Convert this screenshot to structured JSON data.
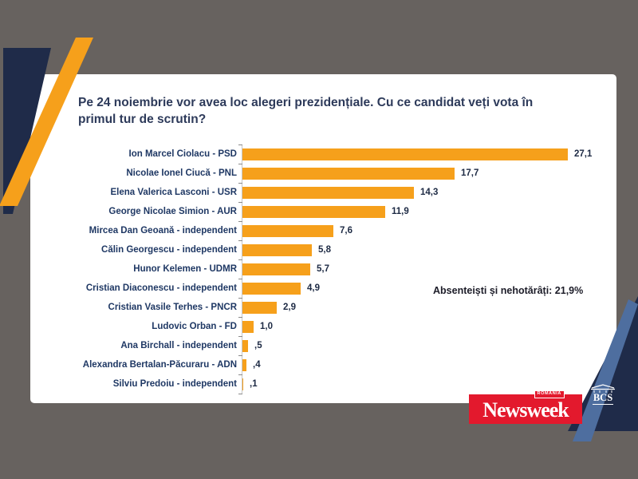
{
  "colors": {
    "background": "#67625f",
    "navy": "#1f2b49",
    "orange": "#f6a01b",
    "steel_blue": "#4e6e9f",
    "newsweek_red": "#e3192d",
    "title_text": "#2d3a5a",
    "label_text": "#1f3864",
    "bar_color": "#f6a01b"
  },
  "card": {
    "title": "Pe 24 noiembrie vor avea loc alegeri prezidențiale. Cu ce candidat veți vota în primul tur de scrutin?"
  },
  "chart_data": {
    "type": "bar",
    "orientation": "horizontal",
    "title": "Pe 24 noiembrie vor avea loc alegeri prezidențiale. Cu ce candidat veți vota în primul tur de scrutin?",
    "categories": [
      "Ion Marcel Ciolacu - PSD",
      "Nicolae Ionel Ciucă - PNL",
      "Elena Valerica Lasconi - USR",
      "George Nicolae Simion - AUR",
      "Mircea Dan Geoană - independent",
      "Călin Georgescu - independent",
      "Hunor Kelemen - UDMR",
      "Cristian Diaconescu - independent",
      "Cristian Vasile Terhes - PNCR",
      "Ludovic Orban - FD",
      "Ana Birchall - independent",
      "Alexandra Bertalan-Păcuraru - ADN",
      "Silviu Predoiu - independent"
    ],
    "values": [
      27.1,
      17.7,
      14.3,
      11.9,
      7.6,
      5.8,
      5.7,
      4.9,
      2.9,
      1.0,
      0.5,
      0.4,
      0.1
    ],
    "value_labels": [
      "27,1",
      "17,7",
      "14,3",
      "11,9",
      "7,6",
      "5,8",
      "5,7",
      "4,9",
      "2,9",
      "1,0",
      ",5",
      ",4",
      ",1"
    ],
    "annotation": "Absenteiști și nehotărâți: 21,9%",
    "xlim": [
      0,
      30
    ],
    "legend": "none",
    "grid": "off",
    "bar_color": "#f6a01b"
  },
  "branding": {
    "newsweek": {
      "wordmark": "Newsweek",
      "country_badge": "ROMÂNIA"
    },
    "bcs": {
      "label": "BCS"
    }
  }
}
